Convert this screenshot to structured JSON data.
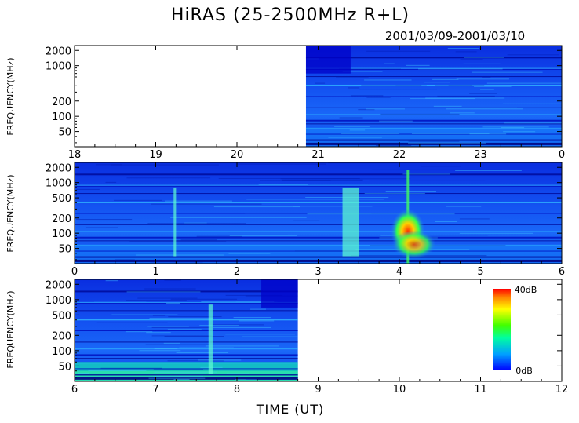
{
  "chart_data": {
    "type": "heatmap",
    "title": "HiRAS (25-2500MHz R+L)",
    "subtitle": "2001/03/09-2001/03/10",
    "xlabel": "TIME (UT)",
    "ylabel": "FREQUENCY(MHz)",
    "y_scale": "log",
    "y_ticks": [
      2000,
      1000,
      500,
      200,
      100,
      50
    ],
    "colorbar": {
      "max_label": "40dB",
      "min_label": "0dB",
      "range_db": [
        0,
        40
      ]
    },
    "panels": [
      {
        "xlim": [
          18,
          24
        ],
        "x_tick_labels": [
          "18",
          "19",
          "20",
          "21",
          "22",
          "23",
          "0"
        ],
        "y_tick_labels": [
          "2000",
          "1000",
          "200",
          "100",
          "50"
        ],
        "data_start": 20.85,
        "data_end": 24,
        "features": [
          {
            "start": 20.85,
            "end": 21.4,
            "note": "intense low-intensity band near 1000-2000 MHz at start of observation"
          }
        ]
      },
      {
        "xlim": [
          0,
          6
        ],
        "x_tick_labels": [
          "0",
          "1",
          "2",
          "3",
          "4",
          "5",
          "6"
        ],
        "y_tick_labels": [
          "2000",
          "1000",
          "500",
          "200",
          "100",
          "50"
        ],
        "data_start": 0,
        "data_end": 6,
        "features": [
          {
            "start": 4.0,
            "end": 4.3,
            "note": "radio burst, up to ~40 dB"
          },
          {
            "start": 1.22,
            "end": 1.25,
            "note": "weak spike"
          },
          {
            "start": 3.3,
            "end": 3.5,
            "note": "weak spikes"
          }
        ]
      },
      {
        "xlim": [
          6,
          12
        ],
        "x_tick_labels": [
          "6",
          "7",
          "8",
          "9",
          "10",
          "11",
          "12"
        ],
        "y_tick_labels": [
          "2000",
          "1000",
          "500",
          "200",
          "100",
          "50"
        ],
        "data_start": 6,
        "data_end": 8.75,
        "features": [
          {
            "start": 7.65,
            "end": 7.7,
            "note": "narrow spike"
          },
          {
            "start": 8.3,
            "end": 8.75,
            "note": "dark band near 1000-2000 MHz at end of observation"
          }
        ]
      }
    ]
  },
  "colors": {
    "background_dark": "#0000e6",
    "background": "#0a3cf0",
    "background_light": "#1860f8",
    "low_freq_band": "#19d8c8",
    "burst": "#ff3300"
  }
}
